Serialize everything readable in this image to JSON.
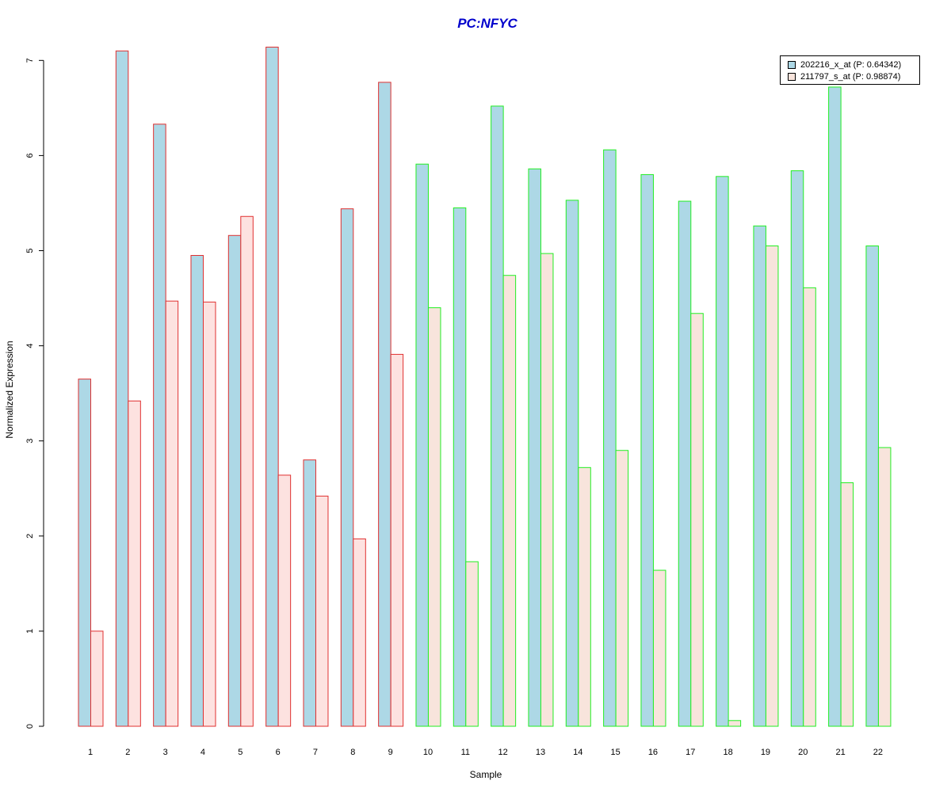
{
  "chart_data": {
    "type": "bar",
    "title": "PC:NFYC",
    "xlabel": "Sample",
    "ylabel": "Normalized Expression",
    "ylim": [
      0,
      7.3
    ],
    "yticks": [
      0,
      1,
      2,
      3,
      4,
      5,
      6,
      7
    ],
    "categories": [
      "1",
      "2",
      "3",
      "4",
      "5",
      "6",
      "7",
      "8",
      "9",
      "10",
      "11",
      "12",
      "13",
      "14",
      "15",
      "16",
      "17",
      "18",
      "19",
      "20",
      "21",
      "22"
    ],
    "series": [
      {
        "name": "202216_x_at (P: 0.64342)",
        "fill": "#add8e6",
        "values": [
          3.65,
          7.1,
          6.33,
          4.95,
          5.16,
          7.14,
          2.8,
          5.44,
          6.77,
          5.91,
          5.45,
          6.52,
          5.86,
          5.53,
          6.06,
          5.8,
          5.52,
          5.78,
          5.26,
          5.84,
          6.72,
          5.05
        ]
      },
      {
        "name": "211797_s_at (P: 0.98874)",
        "fill": "#f8e4dc",
        "values": [
          1.0,
          3.42,
          4.47,
          4.46,
          5.36,
          2.64,
          2.42,
          1.97,
          3.91,
          4.4,
          1.73,
          4.74,
          4.97,
          2.72,
          2.9,
          1.64,
          4.34,
          0.06,
          5.05,
          4.61,
          2.56,
          2.93
        ]
      }
    ],
    "groups": [
      {
        "samples": [
          1,
          2,
          3,
          4,
          5,
          6,
          7,
          8,
          9
        ],
        "border": "#e03030",
        "fill_second": "#fde2e0"
      },
      {
        "samples": [
          10,
          11,
          12,
          13,
          14,
          15,
          16,
          17,
          18,
          19,
          20,
          21,
          22
        ],
        "border": "#22ee22",
        "fill_second": "#f8e4dc"
      }
    ],
    "legend_position": "top-right",
    "grid": false
  }
}
